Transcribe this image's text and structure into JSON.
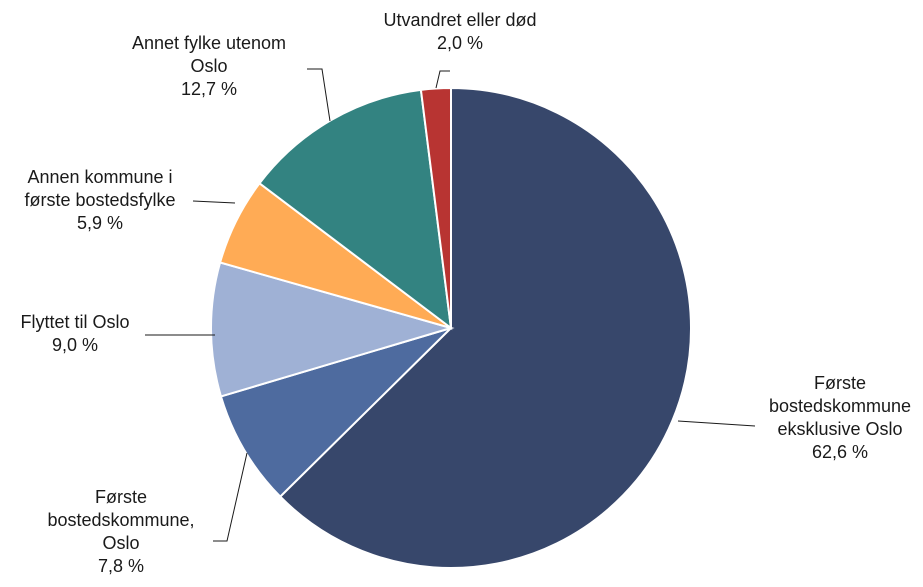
{
  "chart_data": {
    "type": "pie",
    "categories": [
      "Første bostedskommune eksklusive Oslo",
      "Første bostedskommune, Oslo",
      "Flyttet til Oslo",
      "Annen kommune i første bostedsfylke",
      "Annet fylke utenom Oslo",
      "Utvandret eller død"
    ],
    "values": [
      62.6,
      7.8,
      9.0,
      5.9,
      12.7,
      2.0
    ],
    "label_lines": [
      [
        "Første",
        "bostedskommune",
        "eksklusive Oslo",
        "62,6 %"
      ],
      [
        "Første",
        "bostedskommune,",
        "Oslo",
        "7,8 %"
      ],
      [
        "Flyttet til Oslo",
        "9,0 %"
      ],
      [
        "Annen kommune i",
        "første bostedsfylke",
        "5,9 %"
      ],
      [
        "Annet fylke utenom",
        "Oslo",
        "12,7 %"
      ],
      [
        "Utvandret eller død",
        "2,0 %"
      ]
    ],
    "colors": [
      "#37476b",
      "#4e6b9f",
      "#9fb1d5",
      "#ffab55",
      "#338381",
      "#b83432"
    ],
    "start_angle": "12 o'clock",
    "direction": "clockwise",
    "legend": "none"
  }
}
